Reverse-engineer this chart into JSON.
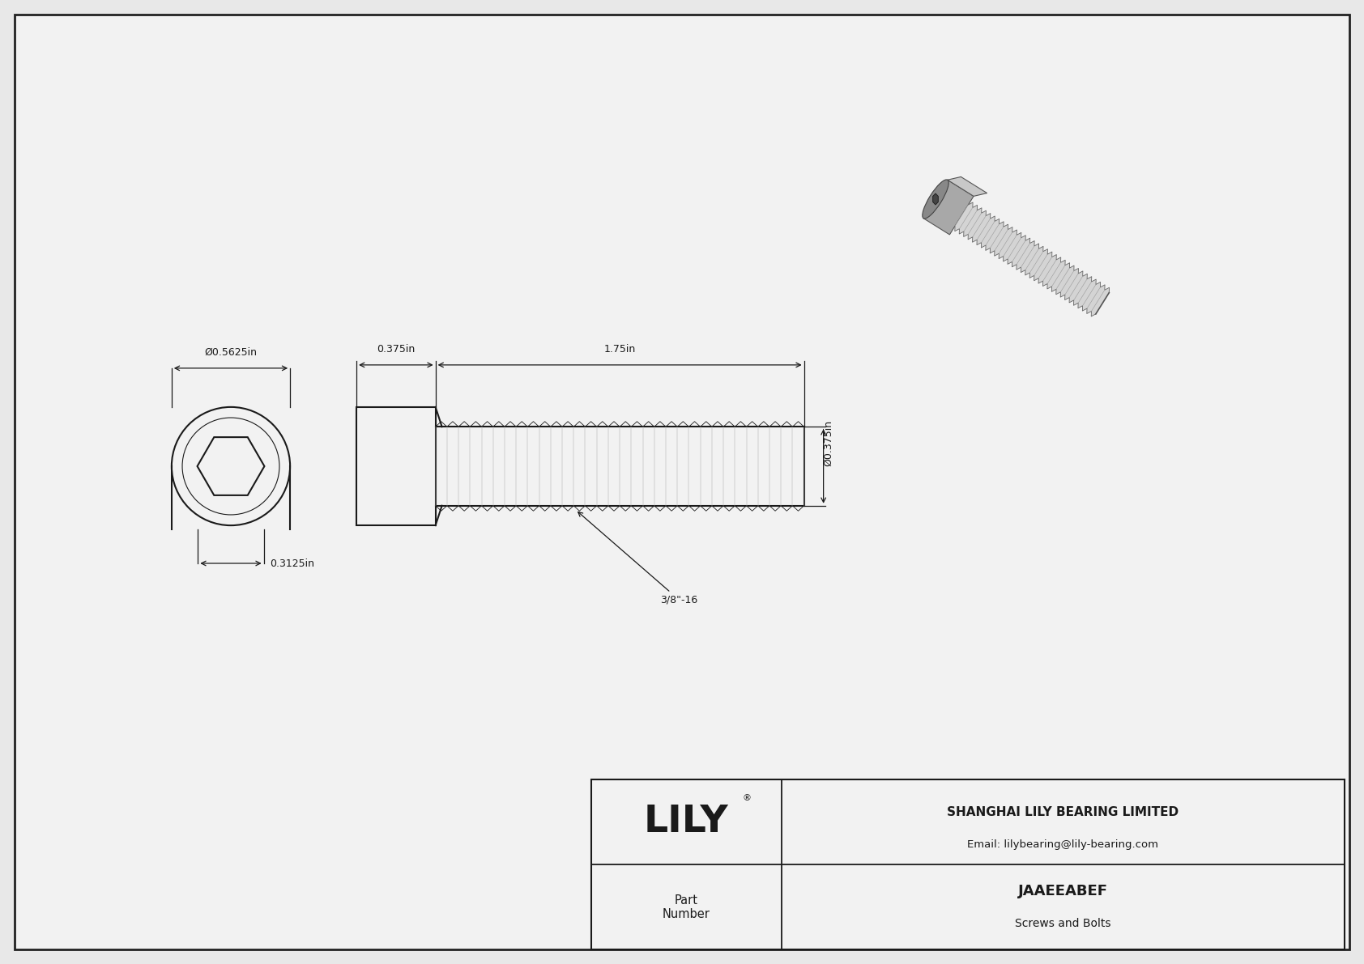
{
  "bg_color": "#e8e8e8",
  "drawing_bg": "#f2f2f2",
  "line_color": "#1a1a1a",
  "title_company": "SHANGHAI LILY BEARING LIMITED",
  "title_email": "Email: lilybearing@lily-bearing.com",
  "part_number": "JAAEEABEF",
  "part_category": "Screws and Bolts",
  "part_label": "Part\nNumber",
  "lily_logo": "LILY",
  "dim_head_diameter": "Ø0.5625in",
  "dim_head_length": "0.375in",
  "dim_thread_length": "1.75in",
  "dim_thread_diameter": "Ø0.375in",
  "dim_head_height": "0.3125in",
  "dim_thread_label": "3/8\"-16",
  "border_color": "#222222"
}
